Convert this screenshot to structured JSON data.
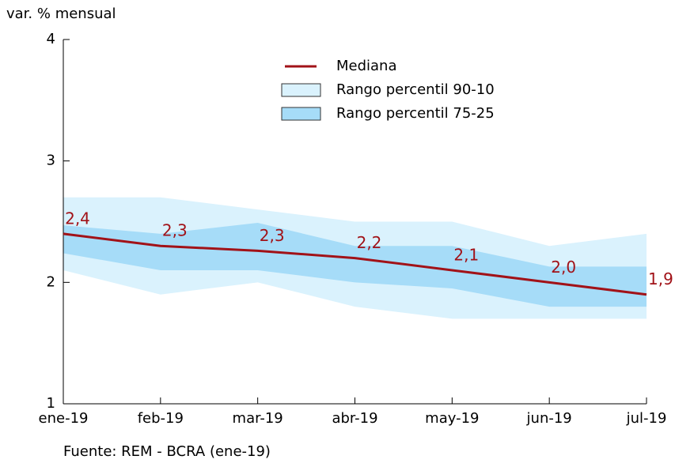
{
  "chart_data": {
    "type": "line-band",
    "y_label": "var. % mensual",
    "source": "Fuente: REM - BCRA (ene-19)",
    "categories": [
      "ene-19",
      "feb-19",
      "mar-19",
      "abr-19",
      "may-19",
      "jun-19",
      "jul-19"
    ],
    "ylim": [
      1,
      4
    ],
    "yticks": [
      1,
      2,
      3,
      4
    ],
    "grid": false,
    "series": [
      {
        "name": "Mediana",
        "color": "#a11218",
        "values": [
          2.4,
          2.3,
          2.26,
          2.2,
          2.1,
          2.0,
          1.9
        ],
        "value_labels": [
          "2,4",
          "2,3",
          "2,3",
          "2,2",
          "2,1",
          "2,0",
          "1,9"
        ]
      },
      {
        "name": "Rango percentil 90-10",
        "color": "#daf2fd",
        "upper": [
          2.7,
          2.7,
          2.6,
          2.5,
          2.5,
          2.3,
          2.4
        ],
        "lower": [
          2.1,
          1.9,
          2.0,
          1.8,
          1.7,
          1.7,
          1.7
        ]
      },
      {
        "name": "Rango percentil 75-25",
        "color": "#a6dcf8",
        "upper": [
          2.47,
          2.4,
          2.49,
          2.3,
          2.3,
          2.13,
          2.13
        ],
        "lower": [
          2.24,
          2.1,
          2.1,
          2.0,
          1.95,
          1.8,
          1.8
        ]
      }
    ]
  }
}
